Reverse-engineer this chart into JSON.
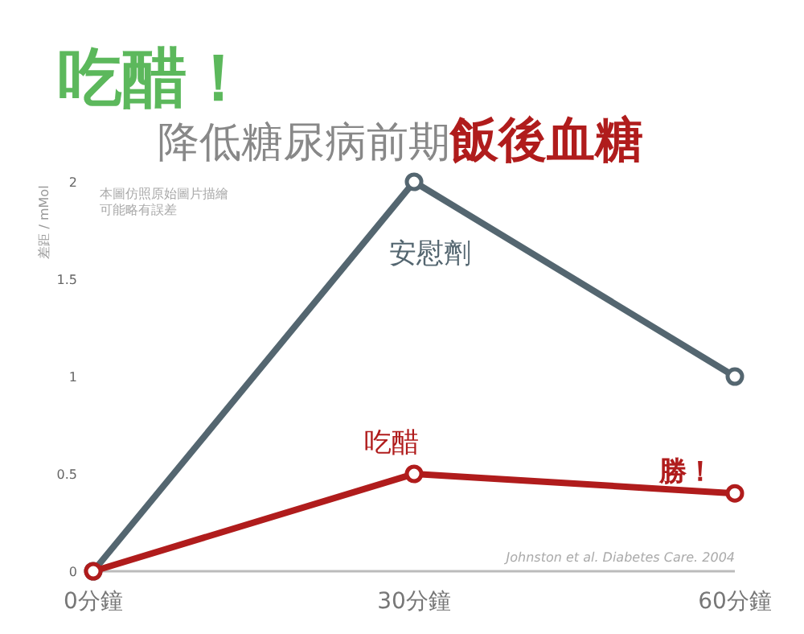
{
  "chart_data": {
    "type": "line",
    "title": "吃醋！",
    "subtitle": "降低糖尿病前期飯後血糖",
    "ylabel": "差距 / mMol",
    "categories": [
      "0分鐘",
      "30分鐘",
      "60分鐘"
    ],
    "series": [
      {
        "name": "安慰劑",
        "color": "#546670",
        "values": [
          0,
          2,
          1
        ]
      },
      {
        "name": "吃醋",
        "color": "#b01c1c",
        "values": [
          0,
          0.5,
          0.4
        ]
      }
    ],
    "ylim": [
      0,
      2
    ],
    "yticks": [
      0,
      0.5,
      1,
      1.5,
      2
    ],
    "marker": "circle",
    "line_style": "solid",
    "grid": false,
    "annotations": [
      "本圖仿照原始圖片描繪",
      "可能略有誤差",
      {
        "text": "勝！",
        "x": "60分鐘",
        "y": 0.4
      },
      "Johnston et al. Diabetes Care. 2004"
    ]
  }
}
